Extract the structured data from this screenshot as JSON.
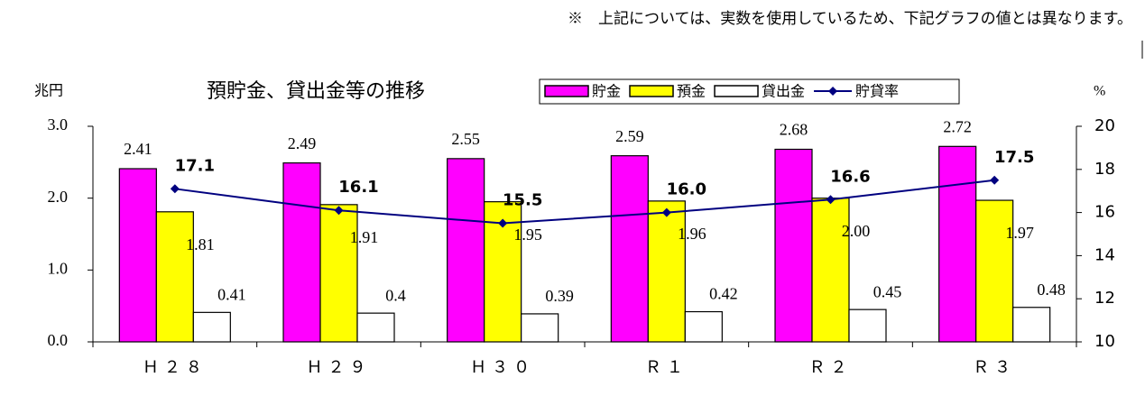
{
  "chart_data": {
    "type": "bar-line",
    "title": "預貯金、貸出金等の推移",
    "note": "※　上記については、実数を使用しているため、下記グラフの値とは異なります。",
    "y_label": "兆円",
    "y2_label": "%",
    "categories": [
      "Ｈ２８",
      "Ｈ２９",
      "Ｈ３０",
      "Ｒ１",
      "Ｒ２",
      "Ｒ３"
    ],
    "series": [
      {
        "name": "貯金",
        "type": "bar",
        "color": "#ff00ff",
        "values": [
          2.41,
          2.49,
          2.55,
          2.59,
          2.68,
          2.72
        ]
      },
      {
        "name": "預金",
        "type": "bar",
        "color": "#ffff00",
        "values": [
          1.81,
          1.91,
          1.95,
          1.96,
          2,
          1.97
        ],
        "value_labels": [
          "1.81",
          "1.91",
          "1.95",
          "1.96",
          "2.00",
          "1.97"
        ]
      },
      {
        "name": "貸出金",
        "type": "bar",
        "color": "#ffffff",
        "values": [
          0.41,
          0.4,
          0.39,
          0.42,
          0.45,
          0.48
        ]
      },
      {
        "name": "貯貸率",
        "type": "line",
        "axis": "y2",
        "color": "#000080",
        "values": [
          17.1,
          16.1,
          15.5,
          16,
          16.6,
          17.5
        ],
        "value_labels": [
          "17.1",
          "16.1",
          "15.5",
          "16.0",
          "16.6",
          "17.5"
        ]
      }
    ],
    "ylim": [
      0,
      3
    ],
    "yticks": [
      {
        "value": 0,
        "label": "0.0"
      },
      {
        "value": 1,
        "label": "1.0"
      },
      {
        "value": 2,
        "label": "2.0"
      },
      {
        "value": 3,
        "label": "3.0"
      }
    ],
    "y2lim": [
      10,
      20
    ],
    "y2ticks": [
      10,
      12,
      14,
      16,
      18,
      20
    ],
    "grid": false
  }
}
